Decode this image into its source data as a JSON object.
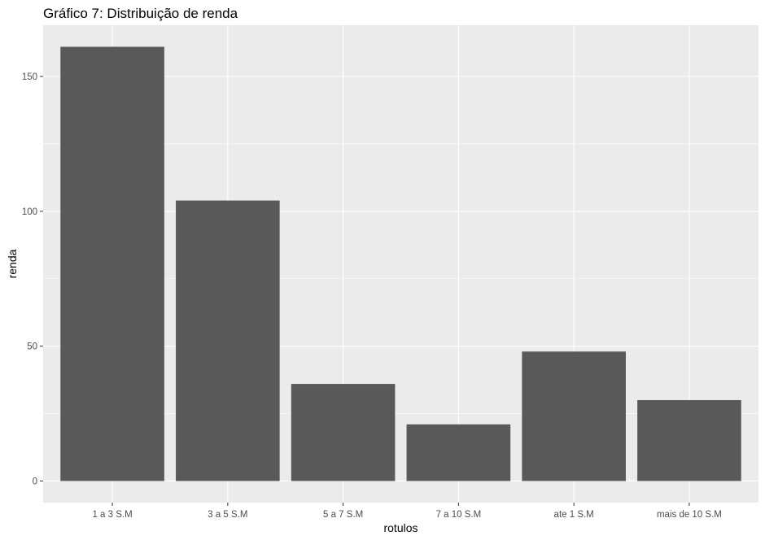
{
  "chart_data": {
    "type": "bar",
    "title": "Gráfico 7: Distribuição de renda",
    "xlabel": "rotulos",
    "ylabel": "renda",
    "categories": [
      "1 a 3 S.M",
      "3 a 5 S.M",
      "5 a 7 S.M",
      "7 a 10 S.M",
      "ate 1 S.M",
      "mais de 10 S.M"
    ],
    "values": [
      161,
      104,
      36,
      21,
      48,
      30
    ],
    "ylim": [
      -8,
      169
    ],
    "yticks": [
      0,
      50,
      100,
      150
    ],
    "grid": true,
    "bar_color": "#595959",
    "panel_color": "#ebebeb"
  }
}
